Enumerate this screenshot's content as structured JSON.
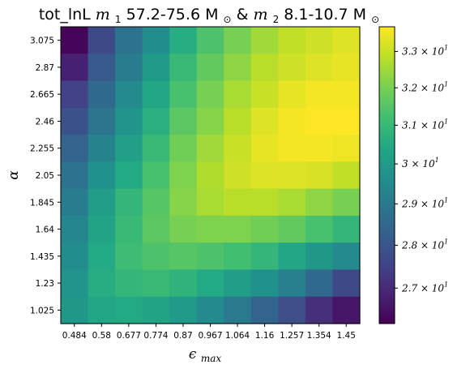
{
  "chart_data": {
    "type": "heatmap",
    "title": "tot_lnL  m1 57.2-75.6 M⊙ & m2 8.1-10.7 M⊙",
    "title_parts": {
      "prefix": "tot_lnL ",
      "m1_sym": "m",
      "m1_sub": "1",
      "m1_range": " 57.2-75.6 M",
      "sun": "⊙",
      "amp": " & ",
      "m2_sym": "m",
      "m2_sub": "2",
      "m2_range": " 8.1-10.7 M"
    },
    "xlabel": "ϵ",
    "xlabel_sub": "max",
    "ylabel": "α",
    "x": [
      "0.484",
      "0.58",
      "0.677",
      "0.774",
      "0.87",
      "0.967",
      "1.064",
      "1.16",
      "1.257",
      "1.354",
      "1.45"
    ],
    "y": [
      "3.075",
      "2.87",
      "2.665",
      "2.46",
      "2.255",
      "2.05",
      "1.845",
      "1.64",
      "1.435",
      "1.23",
      "1.025"
    ],
    "values": [
      [
        26.3,
        27.7,
        28.8,
        29.6,
        30.6,
        31.4,
        32.0,
        32.5,
        32.9,
        33.1,
        33.3
      ],
      [
        26.8,
        28.1,
        29.1,
        30.0,
        31.0,
        31.7,
        32.3,
        32.8,
        33.1,
        33.3,
        33.4
      ],
      [
        27.5,
        28.5,
        29.5,
        30.4,
        31.3,
        32.0,
        32.6,
        33.0,
        33.4,
        33.6,
        33.6
      ],
      [
        27.9,
        28.9,
        29.8,
        30.7,
        31.6,
        32.2,
        32.8,
        33.3,
        33.6,
        33.7,
        33.7
      ],
      [
        28.4,
        29.3,
        30.2,
        31.0,
        31.9,
        32.5,
        33.0,
        33.4,
        33.6,
        33.6,
        33.5
      ],
      [
        28.8,
        29.7,
        30.5,
        31.3,
        32.1,
        32.7,
        33.1,
        33.3,
        33.3,
        33.2,
        32.9
      ],
      [
        29.1,
        30.1,
        30.9,
        31.5,
        32.2,
        32.6,
        32.8,
        32.8,
        32.6,
        32.3,
        32.0
      ],
      [
        29.4,
        30.3,
        31.0,
        31.6,
        32.0,
        32.1,
        32.1,
        31.9,
        31.7,
        31.3,
        30.9
      ],
      [
        29.6,
        30.5,
        31.1,
        31.4,
        31.5,
        31.4,
        31.2,
        30.9,
        30.4,
        29.9,
        29.5
      ],
      [
        29.8,
        30.6,
        30.9,
        31.0,
        30.8,
        30.5,
        30.1,
        29.7,
        29.2,
        28.5,
        27.7
      ],
      [
        29.9,
        30.4,
        30.5,
        30.3,
        30.0,
        29.5,
        29.0,
        28.4,
        27.8,
        27.1,
        26.6
      ]
    ],
    "colorbar": {
      "scale": "log",
      "range": [
        26.2,
        33.7
      ],
      "ticks": [
        27,
        28,
        29,
        30,
        31,
        32,
        33
      ],
      "tick_bases": [
        "2.7",
        "2.8",
        "2.9",
        "3",
        "3.1",
        "3.2",
        "3.3"
      ],
      "tick_mult": "×",
      "tick_ten": "10",
      "tick_exp": "1"
    },
    "colormap": "viridis"
  }
}
